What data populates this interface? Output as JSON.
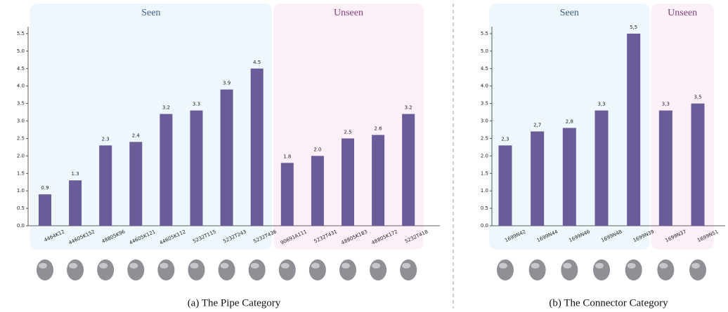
{
  "chart_data": [
    {
      "type": "bar",
      "caption": "(a) The Pipe Category",
      "color": "#6a5b99",
      "categories": [
        "4464K12",
        "44605K152",
        "48805K96",
        "44605K121",
        "44605K112",
        "5232T115",
        "5232T243",
        "5232T436",
        "90691A111",
        "5232T431",
        "48805K183",
        "48805K172",
        "5232T418"
      ],
      "values": [
        0.9,
        1.3,
        2.3,
        2.4,
        3.2,
        3.3,
        3.9,
        4.5,
        1.8,
        2.0,
        2.5,
        2.6,
        3.2
      ],
      "value_labels": [
        "0.9",
        "1.3",
        "2.3",
        "2.4",
        "3.2",
        "3.3",
        "3.9",
        "4.5",
        "1.8",
        "2.0",
        "2.5",
        "2.6",
        "3.2"
      ],
      "regions": [
        {
          "label": "Seen",
          "size": 8,
          "color": "#eef7fb",
          "text_color": "#3e5c85"
        },
        {
          "label": "Unseen",
          "size": 5,
          "color": "#fcf0f8",
          "text_color": "#8a3d7c"
        }
      ],
      "ylim": [
        0,
        5.7
      ],
      "yticks": [
        {
          "value": 0,
          "label": "0.0"
        },
        {
          "value": 0.5,
          "label": "0.5"
        },
        {
          "value": 1,
          "label": "1.0"
        },
        {
          "value": 1.5,
          "label": "1.5"
        },
        {
          "value": 2,
          "label": "2.0"
        },
        {
          "value": 2.5,
          "label": "2.5"
        },
        {
          "value": 3,
          "label": "3.0"
        },
        {
          "value": 3.5,
          "label": "3.5"
        },
        {
          "value": 4,
          "label": "4.0"
        },
        {
          "value": 4.5,
          "label": "4.5"
        },
        {
          "value": 5,
          "label": "5.0"
        },
        {
          "value": 5.5,
          "label": "5.5"
        }
      ]
    },
    {
      "type": "bar",
      "caption": "(b) The Connector Category",
      "color": "#6a5b99",
      "categories": [
        "1699N42",
        "1699N44",
        "1699N46",
        "1699N48",
        "1699N39",
        "1699N37",
        "1699N51"
      ],
      "values": [
        2.3,
        2.7,
        2.8,
        3.3,
        5.5,
        3.3,
        3.5
      ],
      "value_labels": [
        "2,3",
        "2,7",
        "2,8",
        "3,3",
        "5,5",
        "3,3",
        "3,5"
      ],
      "regions": [
        {
          "label": "Seen",
          "size": 5,
          "color": "#eef7fb",
          "text_color": "#3e5c85"
        },
        {
          "label": "Unseen",
          "size": 2,
          "color": "#fcf0f8",
          "text_color": "#8a3d7c"
        }
      ],
      "ylim": [
        0,
        5.7
      ],
      "yticks": [
        {
          "value": 0,
          "label": "0.0"
        },
        {
          "value": 0.5,
          "label": "0.5"
        },
        {
          "value": 1,
          "label": "1.0"
        },
        {
          "value": 1.5,
          "label": "1.5"
        },
        {
          "value": 2,
          "label": "2.0"
        },
        {
          "value": 2.5,
          "label": "2.5"
        },
        {
          "value": 3,
          "label": "3.0"
        },
        {
          "value": 3.5,
          "label": "3.5"
        },
        {
          "value": 4,
          "label": "4.0"
        },
        {
          "value": 4.5,
          "label": "4.5"
        },
        {
          "value": 5,
          "label": "5.0"
        },
        {
          "value": 5.5,
          "label": "5.5"
        }
      ]
    }
  ]
}
